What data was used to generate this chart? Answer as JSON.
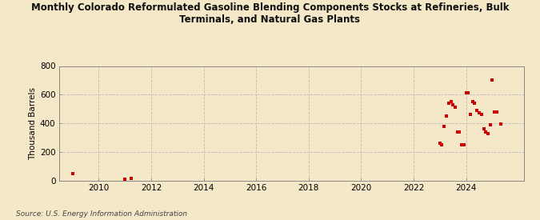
{
  "title": "Monthly Colorado Reformulated Gasoline Blending Components Stocks at Refineries, Bulk\nTerminals, and Natural Gas Plants",
  "ylabel": "Thousand Barrels",
  "source": "Source: U.S. Energy Information Administration",
  "background_color": "#f5e8c8",
  "plot_background_color": "#f5e8c8",
  "marker_color": "#cc0000",
  "xlim": [
    2008.5,
    2026.2
  ],
  "ylim": [
    0,
    800
  ],
  "yticks": [
    0,
    200,
    400,
    600,
    800
  ],
  "xticks": [
    2010,
    2012,
    2014,
    2016,
    2018,
    2020,
    2022,
    2024
  ],
  "data_x": [
    2009.0,
    2011.0,
    2011.25,
    2023.0,
    2023.17,
    2023.33,
    2023.5,
    2023.67,
    2023.83,
    2024.0,
    2024.17,
    2024.33,
    2024.5,
    2024.67,
    2024.83,
    2025.0,
    2025.17,
    2025.33,
    2023.08,
    2023.25,
    2023.42,
    2023.58,
    2023.75,
    2023.92,
    2024.08,
    2024.25,
    2024.42,
    2024.58,
    2024.75,
    2024.92,
    2025.08
  ],
  "data_y": [
    45,
    8,
    12,
    260,
    380,
    540,
    530,
    340,
    250,
    610,
    460,
    540,
    470,
    360,
    330,
    700,
    480,
    395,
    250,
    450,
    550,
    510,
    340,
    250,
    610,
    550,
    490,
    460,
    340,
    390,
    480
  ]
}
